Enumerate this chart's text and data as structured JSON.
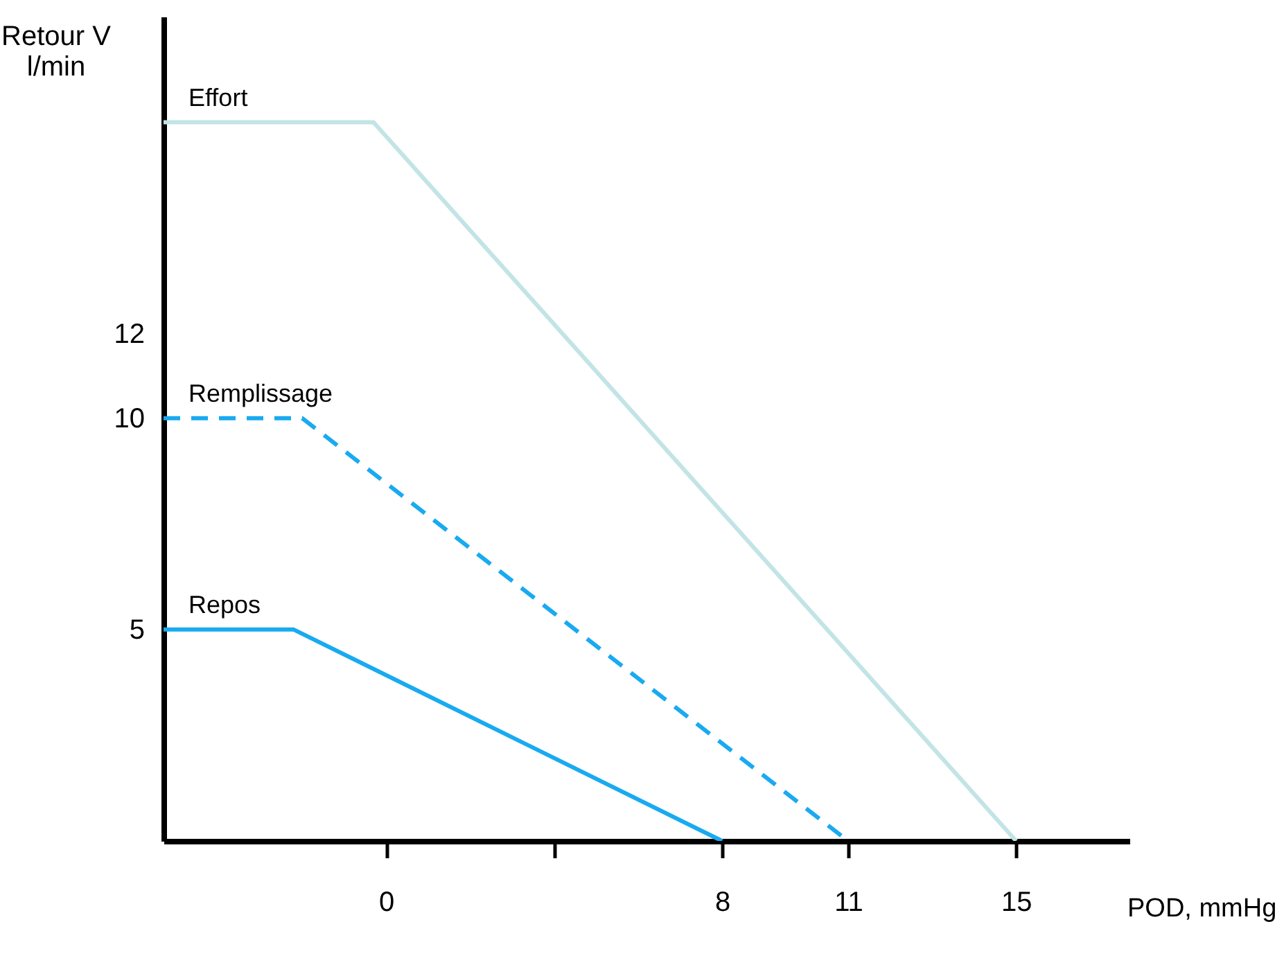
{
  "chart_data": {
    "type": "line",
    "xlabel": "POD, mmHg",
    "ylabel": "Retour V\nl/min",
    "xlim": [
      -5.3,
      17.7
    ],
    "xticks": [
      0,
      {
        "value": 4,
        "label": null
      },
      8,
      11,
      15
    ],
    "ylim": [
      0,
      19.5
    ],
    "yticks": [
      5,
      10,
      12
    ],
    "grid": false,
    "marker": "none",
    "series": [
      {
        "name": "Effort",
        "color": "#c2e4e6",
        "x": [
          -5.3,
          -0.3,
          15
        ],
        "values": [
          17,
          17,
          0
        ],
        "line_style": "solid"
      },
      {
        "name": "Remplissage",
        "color": "#19aaf0",
        "x": [
          -5.3,
          -2.0,
          11
        ],
        "values": [
          10,
          10,
          0
        ],
        "line_style": "dashed"
      },
      {
        "name": "Repos",
        "color": "#19aaf0",
        "x": [
          -5.3,
          -2.2,
          8
        ],
        "values": [
          5,
          5,
          0
        ],
        "line_style": "solid"
      }
    ]
  }
}
